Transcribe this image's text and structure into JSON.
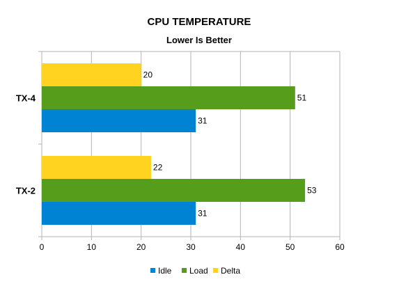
{
  "chart_data": {
    "type": "bar",
    "orientation": "horizontal",
    "title": "CPU TEMPERATURE",
    "subtitle": "Lower Is Better",
    "categories": [
      "TX-4",
      "TX-2"
    ],
    "series": [
      {
        "name": "Delta",
        "color": "#FFD320",
        "values": [
          20,
          22
        ]
      },
      {
        "name": "Load",
        "color": "#579D1C",
        "values": [
          51,
          53
        ]
      },
      {
        "name": "Idle",
        "color": "#0083D3",
        "values": [
          31,
          31
        ]
      }
    ],
    "legend_order": [
      "Idle",
      "Load",
      "Delta"
    ],
    "xlim": [
      0,
      60
    ],
    "xticks": [
      0,
      10,
      20,
      30,
      40,
      50,
      60
    ],
    "grid": true,
    "legend_position": "bottom",
    "show_data_labels": true
  }
}
